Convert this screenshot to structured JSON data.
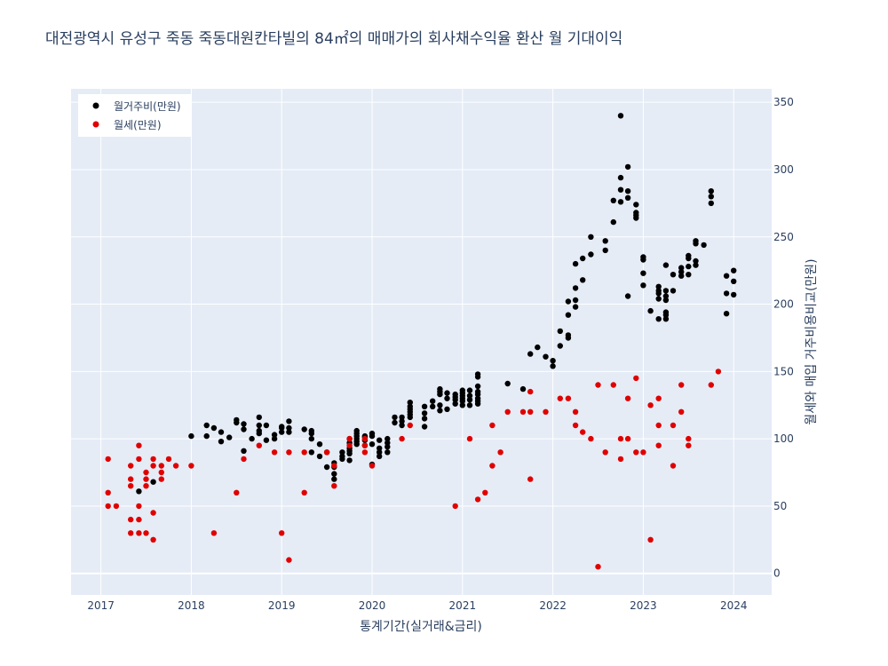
{
  "chart_data": {
    "type": "scatter",
    "title": "대전광역시 유성구 죽동 죽동대원칸타빌의 84㎡의 매매가의 회사채수익율 환산 월 기대이익",
    "xlabel": "통계기간(실거래&금리)",
    "ylabel": "월세와 매입 거주비용비교(만원)",
    "x_ticks": [
      "2017",
      "2018",
      "2019",
      "2020",
      "2021",
      "2022",
      "2023",
      "2024"
    ],
    "x_range": [
      2016.67,
      2024.42
    ],
    "y_ticks": [
      0,
      50,
      100,
      150,
      200,
      250,
      300,
      350
    ],
    "y_range": [
      -16,
      360
    ],
    "y_axis_side": "right",
    "grid": true,
    "legend_position": "top-left",
    "series": [
      {
        "name": "월거주비(만원)",
        "color": "#000000",
        "points": [
          [
            2017.42,
            61
          ],
          [
            2017.58,
            68
          ],
          [
            2018.0,
            102
          ],
          [
            2018.17,
            102
          ],
          [
            2018.17,
            110
          ],
          [
            2018.25,
            108
          ],
          [
            2018.33,
            98
          ],
          [
            2018.33,
            105
          ],
          [
            2018.42,
            101
          ],
          [
            2018.5,
            112
          ],
          [
            2018.5,
            114
          ],
          [
            2018.58,
            91
          ],
          [
            2018.58,
            107
          ],
          [
            2018.58,
            111
          ],
          [
            2018.67,
            100
          ],
          [
            2018.75,
            104
          ],
          [
            2018.75,
            106
          ],
          [
            2018.75,
            110
          ],
          [
            2018.75,
            116
          ],
          [
            2018.83,
            99
          ],
          [
            2018.83,
            110
          ],
          [
            2018.92,
            100
          ],
          [
            2018.92,
            103
          ],
          [
            2019.0,
            105
          ],
          [
            2019.0,
            108
          ],
          [
            2019.0,
            109
          ],
          [
            2019.08,
            105
          ],
          [
            2019.08,
            108
          ],
          [
            2019.08,
            113
          ],
          [
            2019.25,
            107
          ],
          [
            2019.33,
            90
          ],
          [
            2019.33,
            100
          ],
          [
            2019.33,
            104
          ],
          [
            2019.33,
            106
          ],
          [
            2019.42,
            87
          ],
          [
            2019.42,
            96
          ],
          [
            2019.5,
            79
          ],
          [
            2019.5,
            90
          ],
          [
            2019.58,
            70
          ],
          [
            2019.58,
            74
          ],
          [
            2019.58,
            79
          ],
          [
            2019.58,
            82
          ],
          [
            2019.67,
            85
          ],
          [
            2019.67,
            87
          ],
          [
            2019.67,
            90
          ],
          [
            2019.75,
            84
          ],
          [
            2019.75,
            89
          ],
          [
            2019.75,
            91
          ],
          [
            2019.75,
            93
          ],
          [
            2019.75,
            97
          ],
          [
            2019.75,
            100
          ],
          [
            2019.83,
            96
          ],
          [
            2019.83,
            98
          ],
          [
            2019.83,
            100
          ],
          [
            2019.83,
            102
          ],
          [
            2019.83,
            104
          ],
          [
            2019.83,
            106
          ],
          [
            2019.92,
            95
          ],
          [
            2019.92,
            99
          ],
          [
            2019.92,
            101
          ],
          [
            2019.92,
            102
          ],
          [
            2020.0,
            81
          ],
          [
            2020.0,
            96
          ],
          [
            2020.0,
            102
          ],
          [
            2020.0,
            104
          ],
          [
            2020.08,
            87
          ],
          [
            2020.08,
            90
          ],
          [
            2020.08,
            93
          ],
          [
            2020.08,
            99
          ],
          [
            2020.17,
            90
          ],
          [
            2020.17,
            94
          ],
          [
            2020.17,
            97
          ],
          [
            2020.17,
            100
          ],
          [
            2020.25,
            112
          ],
          [
            2020.25,
            116
          ],
          [
            2020.33,
            110
          ],
          [
            2020.33,
            113
          ],
          [
            2020.33,
            116
          ],
          [
            2020.42,
            116
          ],
          [
            2020.42,
            118
          ],
          [
            2020.42,
            120
          ],
          [
            2020.42,
            122
          ],
          [
            2020.42,
            124
          ],
          [
            2020.42,
            127
          ],
          [
            2020.58,
            109
          ],
          [
            2020.58,
            115
          ],
          [
            2020.58,
            119
          ],
          [
            2020.58,
            124
          ],
          [
            2020.67,
            124
          ],
          [
            2020.67,
            128
          ],
          [
            2020.75,
            121
          ],
          [
            2020.75,
            125
          ],
          [
            2020.75,
            133
          ],
          [
            2020.75,
            135
          ],
          [
            2020.75,
            137
          ],
          [
            2020.83,
            122
          ],
          [
            2020.83,
            130
          ],
          [
            2020.83,
            134
          ],
          [
            2020.92,
            126
          ],
          [
            2020.92,
            129
          ],
          [
            2020.92,
            131
          ],
          [
            2020.92,
            133
          ],
          [
            2021.0,
            125
          ],
          [
            2021.0,
            128
          ],
          [
            2021.0,
            130
          ],
          [
            2021.0,
            132
          ],
          [
            2021.0,
            134
          ],
          [
            2021.0,
            136
          ],
          [
            2021.08,
            125
          ],
          [
            2021.08,
            129
          ],
          [
            2021.08,
            132
          ],
          [
            2021.08,
            136
          ],
          [
            2021.17,
            126
          ],
          [
            2021.17,
            128
          ],
          [
            2021.17,
            130
          ],
          [
            2021.17,
            133
          ],
          [
            2021.17,
            135
          ],
          [
            2021.17,
            139
          ],
          [
            2021.17,
            146
          ],
          [
            2021.17,
            148
          ],
          [
            2021.5,
            141
          ],
          [
            2021.67,
            137
          ],
          [
            2021.75,
            163
          ],
          [
            2021.83,
            168
          ],
          [
            2021.92,
            161
          ],
          [
            2022.0,
            154
          ],
          [
            2022.0,
            158
          ],
          [
            2022.08,
            169
          ],
          [
            2022.08,
            180
          ],
          [
            2022.17,
            175
          ],
          [
            2022.17,
            177
          ],
          [
            2022.17,
            192
          ],
          [
            2022.17,
            202
          ],
          [
            2022.25,
            198
          ],
          [
            2022.25,
            203
          ],
          [
            2022.25,
            212
          ],
          [
            2022.25,
            230
          ],
          [
            2022.33,
            218
          ],
          [
            2022.33,
            234
          ],
          [
            2022.42,
            237
          ],
          [
            2022.42,
            250
          ],
          [
            2022.58,
            240
          ],
          [
            2022.58,
            247
          ],
          [
            2022.67,
            261
          ],
          [
            2022.67,
            277
          ],
          [
            2022.75,
            276
          ],
          [
            2022.75,
            285
          ],
          [
            2022.75,
            294
          ],
          [
            2022.75,
            340
          ],
          [
            2022.83,
            206
          ],
          [
            2022.83,
            279
          ],
          [
            2022.83,
            284
          ],
          [
            2022.83,
            302
          ],
          [
            2022.92,
            264
          ],
          [
            2022.92,
            266
          ],
          [
            2022.92,
            268
          ],
          [
            2022.92,
            274
          ],
          [
            2023.0,
            214
          ],
          [
            2023.0,
            223
          ],
          [
            2023.0,
            233
          ],
          [
            2023.0,
            235
          ],
          [
            2023.08,
            195
          ],
          [
            2023.17,
            189
          ],
          [
            2023.17,
            204
          ],
          [
            2023.17,
            208
          ],
          [
            2023.17,
            210
          ],
          [
            2023.17,
            213
          ],
          [
            2023.25,
            189
          ],
          [
            2023.25,
            192
          ],
          [
            2023.25,
            194
          ],
          [
            2023.25,
            203
          ],
          [
            2023.25,
            206
          ],
          [
            2023.25,
            210
          ],
          [
            2023.25,
            229
          ],
          [
            2023.33,
            210
          ],
          [
            2023.33,
            222
          ],
          [
            2023.42,
            221
          ],
          [
            2023.42,
            224
          ],
          [
            2023.42,
            227
          ],
          [
            2023.5,
            222
          ],
          [
            2023.5,
            228
          ],
          [
            2023.5,
            234
          ],
          [
            2023.5,
            236
          ],
          [
            2023.58,
            229
          ],
          [
            2023.58,
            232
          ],
          [
            2023.58,
            245
          ],
          [
            2023.58,
            247
          ],
          [
            2023.67,
            244
          ],
          [
            2023.75,
            275
          ],
          [
            2023.75,
            280
          ],
          [
            2023.75,
            284
          ],
          [
            2023.92,
            193
          ],
          [
            2023.92,
            208
          ],
          [
            2023.92,
            221
          ],
          [
            2024.0,
            207
          ],
          [
            2024.0,
            217
          ],
          [
            2024.0,
            225
          ]
        ]
      },
      {
        "name": "월세(만원)",
        "color": "#e00000",
        "points": [
          [
            2017.08,
            50
          ],
          [
            2017.08,
            60
          ],
          [
            2017.08,
            85
          ],
          [
            2017.17,
            50
          ],
          [
            2017.33,
            30
          ],
          [
            2017.33,
            40
          ],
          [
            2017.33,
            65
          ],
          [
            2017.33,
            70
          ],
          [
            2017.33,
            80
          ],
          [
            2017.42,
            30
          ],
          [
            2017.42,
            40
          ],
          [
            2017.42,
            50
          ],
          [
            2017.42,
            85
          ],
          [
            2017.42,
            95
          ],
          [
            2017.5,
            30
          ],
          [
            2017.5,
            65
          ],
          [
            2017.5,
            70
          ],
          [
            2017.5,
            75
          ],
          [
            2017.58,
            25
          ],
          [
            2017.58,
            45
          ],
          [
            2017.58,
            80
          ],
          [
            2017.58,
            85
          ],
          [
            2017.67,
            70
          ],
          [
            2017.67,
            75
          ],
          [
            2017.67,
            80
          ],
          [
            2017.75,
            85
          ],
          [
            2017.83,
            80
          ],
          [
            2018.0,
            80
          ],
          [
            2018.25,
            30
          ],
          [
            2018.5,
            60
          ],
          [
            2018.58,
            85
          ],
          [
            2018.75,
            95
          ],
          [
            2018.92,
            90
          ],
          [
            2019.0,
            30
          ],
          [
            2019.08,
            10
          ],
          [
            2019.08,
            90
          ],
          [
            2019.25,
            60
          ],
          [
            2019.25,
            90
          ],
          [
            2019.5,
            90
          ],
          [
            2019.58,
            65
          ],
          [
            2019.58,
            80
          ],
          [
            2019.75,
            95
          ],
          [
            2019.75,
            100
          ],
          [
            2019.92,
            90
          ],
          [
            2019.92,
            95
          ],
          [
            2019.92,
            100
          ],
          [
            2020.0,
            80
          ],
          [
            2020.33,
            100
          ],
          [
            2020.42,
            110
          ],
          [
            2020.92,
            50
          ],
          [
            2021.08,
            100
          ],
          [
            2021.17,
            55
          ],
          [
            2021.25,
            60
          ],
          [
            2021.33,
            80
          ],
          [
            2021.33,
            110
          ],
          [
            2021.42,
            90
          ],
          [
            2021.5,
            120
          ],
          [
            2021.67,
            120
          ],
          [
            2021.75,
            70
          ],
          [
            2021.75,
            120
          ],
          [
            2021.75,
            135
          ],
          [
            2021.92,
            120
          ],
          [
            2022.08,
            130
          ],
          [
            2022.17,
            130
          ],
          [
            2022.25,
            110
          ],
          [
            2022.25,
            120
          ],
          [
            2022.33,
            105
          ],
          [
            2022.42,
            100
          ],
          [
            2022.5,
            5
          ],
          [
            2022.5,
            140
          ],
          [
            2022.58,
            90
          ],
          [
            2022.67,
            140
          ],
          [
            2022.75,
            85
          ],
          [
            2022.75,
            100
          ],
          [
            2022.83,
            100
          ],
          [
            2022.83,
            130
          ],
          [
            2022.92,
            90
          ],
          [
            2022.92,
            145
          ],
          [
            2023.0,
            90
          ],
          [
            2023.08,
            25
          ],
          [
            2023.08,
            125
          ],
          [
            2023.17,
            95
          ],
          [
            2023.17,
            110
          ],
          [
            2023.17,
            130
          ],
          [
            2023.33,
            80
          ],
          [
            2023.33,
            110
          ],
          [
            2023.42,
            120
          ],
          [
            2023.42,
            140
          ],
          [
            2023.5,
            95
          ],
          [
            2023.5,
            100
          ],
          [
            2023.75,
            140
          ],
          [
            2023.83,
            150
          ]
        ]
      }
    ]
  }
}
